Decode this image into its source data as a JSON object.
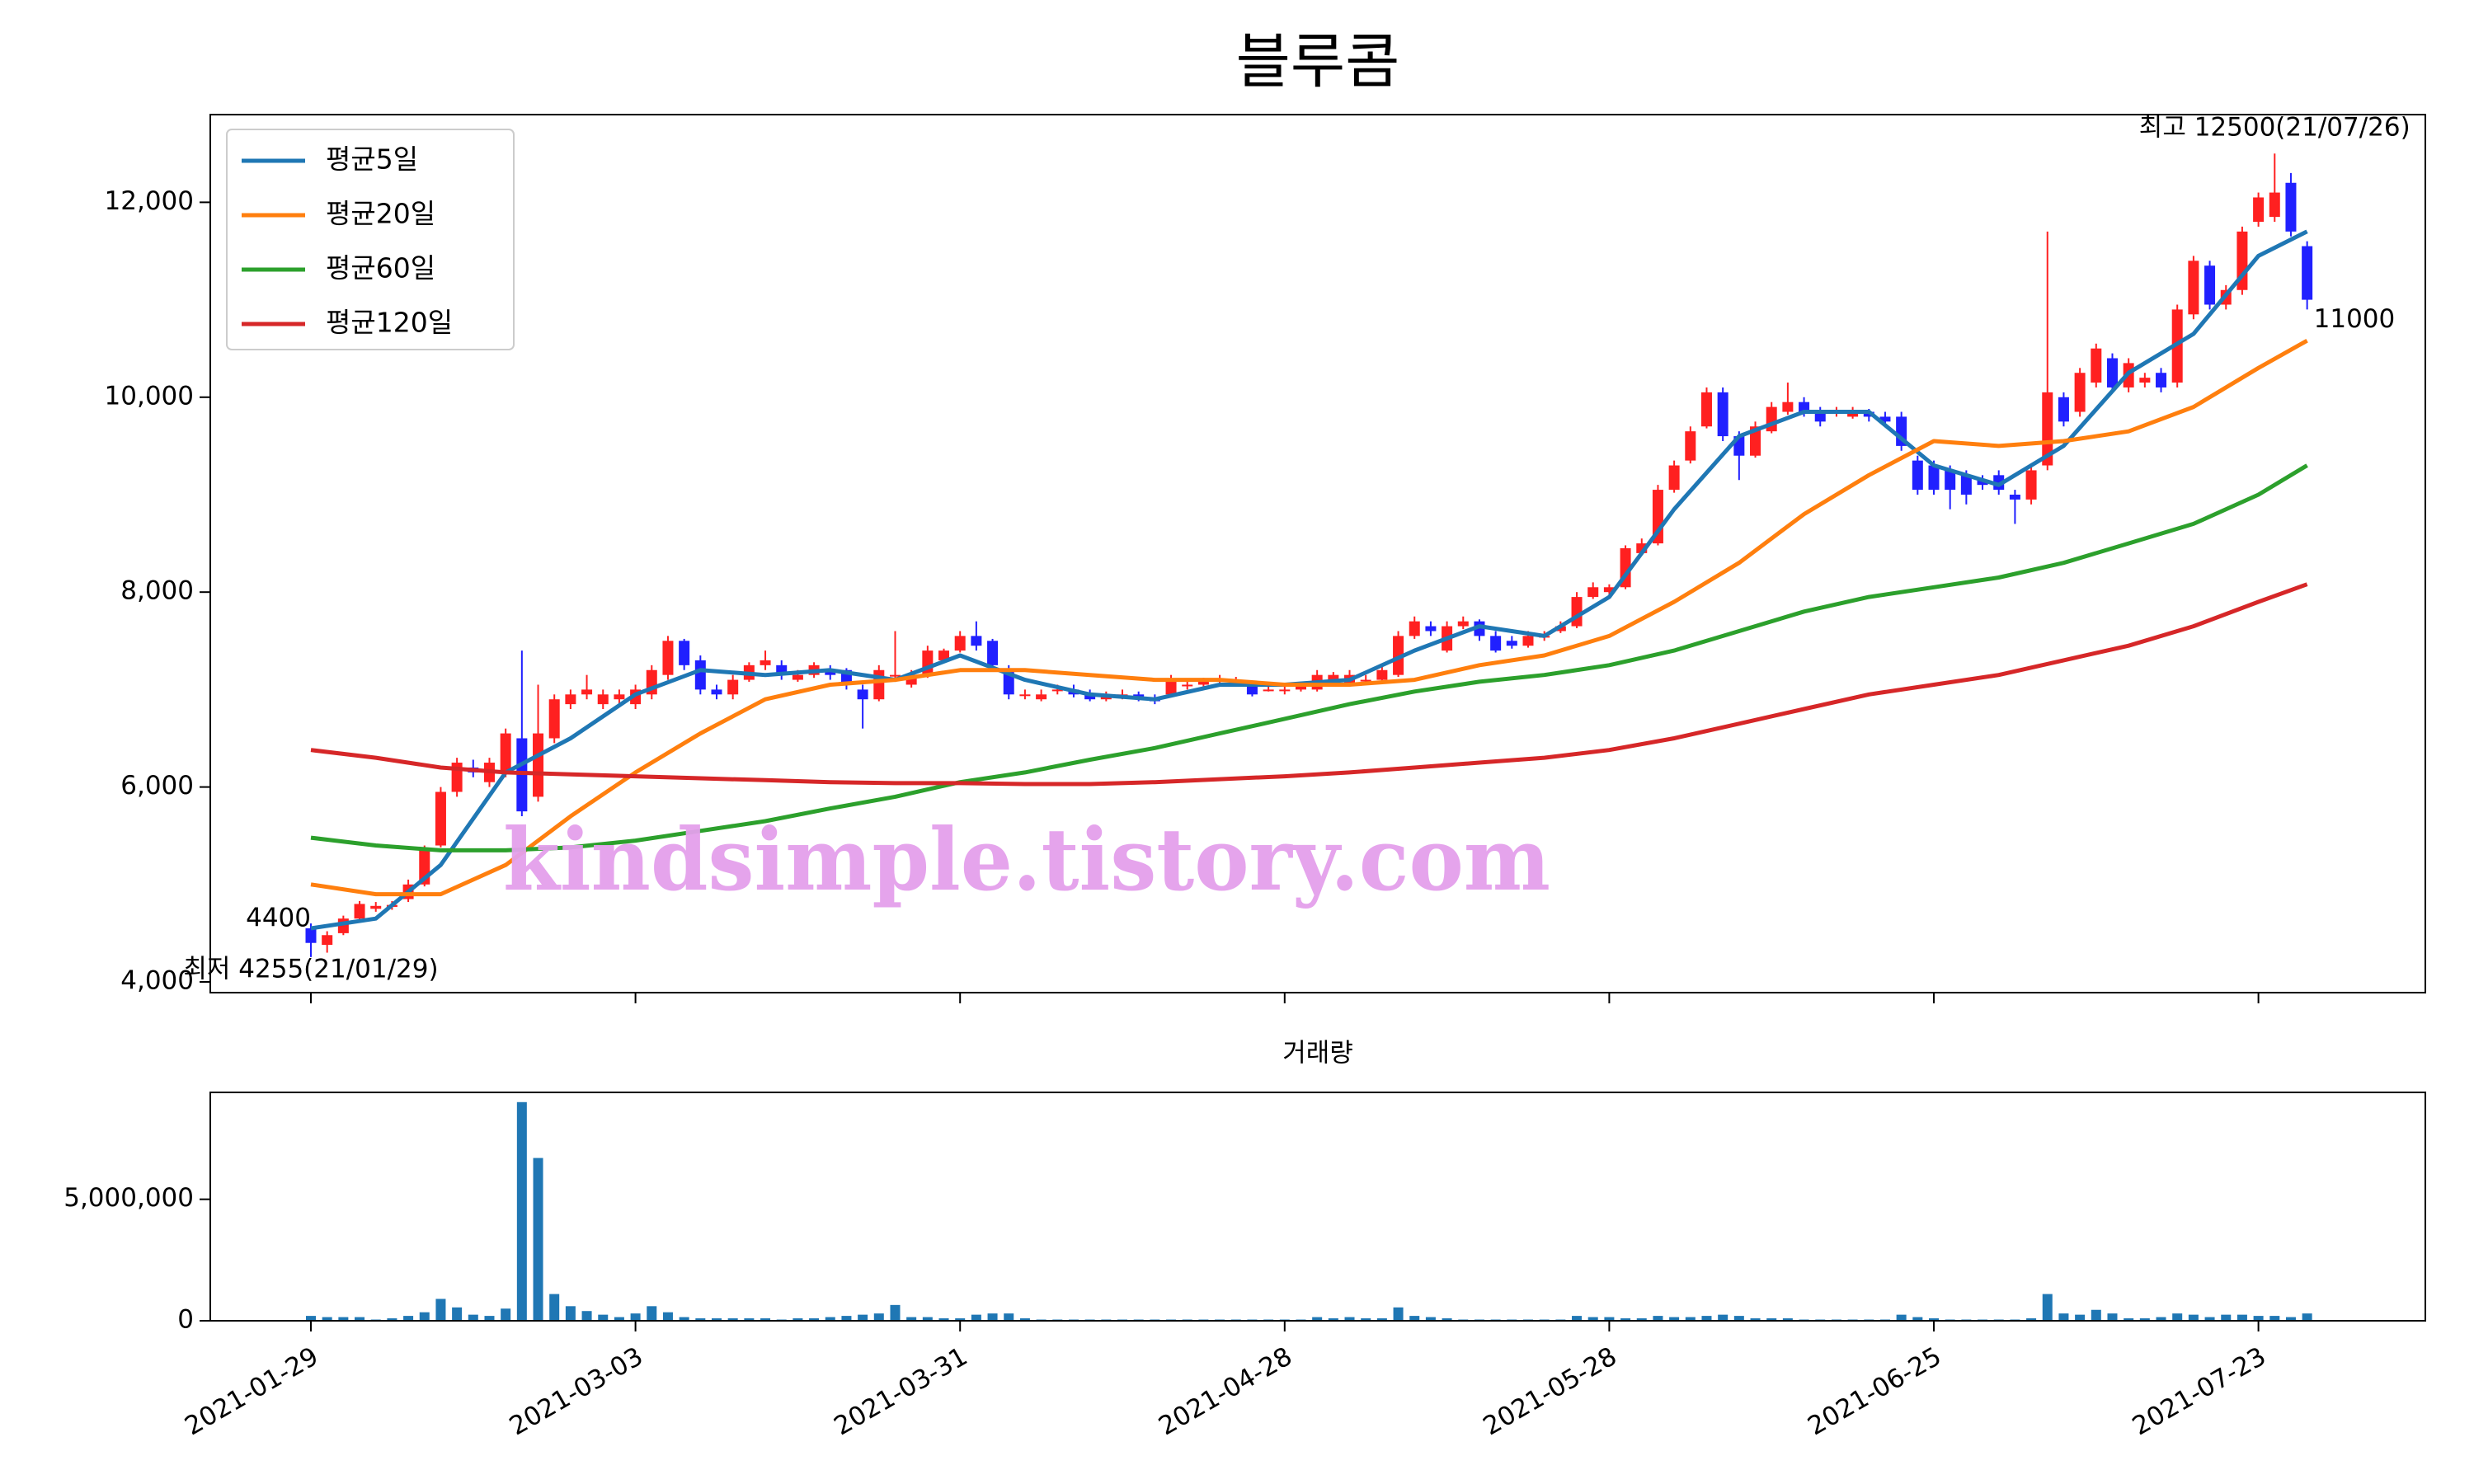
{
  "chart_data": [
    {
      "type": "candlestick",
      "title": "블루콤",
      "categories": [
        "2021-01-29",
        "2021-02-01",
        "2021-02-02",
        "2021-02-03",
        "2021-02-04",
        "2021-02-05",
        "2021-02-08",
        "2021-02-09",
        "2021-02-10",
        "2021-02-15",
        "2021-02-16",
        "2021-02-17",
        "2021-02-18",
        "2021-02-19",
        "2021-02-22",
        "2021-02-23",
        "2021-02-24",
        "2021-02-25",
        "2021-02-26",
        "2021-03-02",
        "2021-03-03",
        "2021-03-04",
        "2021-03-05",
        "2021-03-08",
        "2021-03-09",
        "2021-03-10",
        "2021-03-11",
        "2021-03-12",
        "2021-03-15",
        "2021-03-16",
        "2021-03-17",
        "2021-03-18",
        "2021-03-19",
        "2021-03-22",
        "2021-03-23",
        "2021-03-24",
        "2021-03-25",
        "2021-03-26",
        "2021-03-29",
        "2021-03-30",
        "2021-03-31",
        "2021-04-01",
        "2021-04-02",
        "2021-04-05",
        "2021-04-06",
        "2021-04-07",
        "2021-04-08",
        "2021-04-09",
        "2021-04-12",
        "2021-04-13",
        "2021-04-14",
        "2021-04-15",
        "2021-04-16",
        "2021-04-19",
        "2021-04-20",
        "2021-04-21",
        "2021-04-22",
        "2021-04-23",
        "2021-04-26",
        "2021-04-27",
        "2021-04-28",
        "2021-04-29",
        "2021-04-30",
        "2021-05-03",
        "2021-05-04",
        "2021-05-06",
        "2021-05-07",
        "2021-05-10",
        "2021-05-11",
        "2021-05-12",
        "2021-05-13",
        "2021-05-14",
        "2021-05-17",
        "2021-05-18",
        "2021-05-20",
        "2021-05-21",
        "2021-05-24",
        "2021-05-25",
        "2021-05-26",
        "2021-05-27",
        "2021-05-28",
        "2021-05-31",
        "2021-06-01",
        "2021-06-02",
        "2021-06-03",
        "2021-06-04",
        "2021-06-07",
        "2021-06-08",
        "2021-06-09",
        "2021-06-10",
        "2021-06-11",
        "2021-06-14",
        "2021-06-15",
        "2021-06-16",
        "2021-06-17",
        "2021-06-18",
        "2021-06-21",
        "2021-06-22",
        "2021-06-23",
        "2021-06-24",
        "2021-06-25",
        "2021-06-28",
        "2021-06-29",
        "2021-06-30",
        "2021-07-01",
        "2021-07-02",
        "2021-07-05",
        "2021-07-06",
        "2021-07-07",
        "2021-07-08",
        "2021-07-09",
        "2021-07-12",
        "2021-07-13",
        "2021-07-14",
        "2021-07-15",
        "2021-07-16",
        "2021-07-19",
        "2021-07-20",
        "2021-07-21",
        "2021-07-22",
        "2021-07-23",
        "2021-07-26",
        "2021-07-27",
        "2021-07-28"
      ],
      "open": [
        4550,
        4380,
        4500,
        4650,
        4750,
        4770,
        4850,
        5000,
        5400,
        5950,
        6200,
        6050,
        6150,
        6500,
        5900,
        6500,
        6850,
        6950,
        6850,
        6900,
        6850,
        6950,
        7150,
        7500,
        7300,
        7000,
        6950,
        7100,
        7250,
        7250,
        7100,
        7150,
        7200,
        7200,
        7000,
        6900,
        7150,
        7050,
        7150,
        7300,
        7400,
        7550,
        7500,
        7200,
        6950,
        6900,
        7000,
        7000,
        6950,
        6900,
        6950,
        6950,
        6900,
        6950,
        7050,
        7050,
        7100,
        7080,
        7050,
        7000,
        7000,
        7000,
        7000,
        7100,
        7050,
        7100,
        7100,
        7150,
        7550,
        7650,
        7400,
        7650,
        7700,
        7550,
        7500,
        7450,
        7550,
        7600,
        7650,
        7950,
        8000,
        8050,
        8400,
        8500,
        9050,
        9350,
        9700,
        10050,
        9600,
        9400,
        9650,
        9850,
        9950,
        9850,
        9850,
        9800,
        9850,
        9800,
        9800,
        9350,
        9300,
        9250,
        9200,
        9150,
        9200,
        9000,
        8950,
        9300,
        10000,
        9850,
        10150,
        10400,
        10100,
        10150,
        10250,
        10150,
        10850,
        11350,
        10950,
        11100,
        11800,
        11850,
        12200,
        11550
      ],
      "high": [
        4600,
        4520,
        4680,
        4830,
        4820,
        4830,
        5050,
        5400,
        6000,
        6300,
        6280,
        6300,
        6600,
        7400,
        7050,
        6950,
        7000,
        7150,
        7000,
        7000,
        7050,
        7250,
        7550,
        7520,
        7350,
        7050,
        7150,
        7280,
        7400,
        7300,
        7200,
        7280,
        7250,
        7220,
        7050,
        7250,
        7600,
        7200,
        7450,
        7420,
        7600,
        7700,
        7520,
        7250,
        7000,
        7000,
        7050,
        7050,
        7000,
        6980,
        7000,
        6980,
        6950,
        7150,
        7100,
        7120,
        7150,
        7130,
        7080,
        7050,
        7050,
        7080,
        7200,
        7180,
        7200,
        7150,
        7250,
        7600,
        7750,
        7700,
        7700,
        7750,
        7720,
        7600,
        7550,
        7600,
        7600,
        7700,
        8000,
        8100,
        8080,
        8480,
        8550,
        9100,
        9350,
        9700,
        10100,
        10100,
        9650,
        9750,
        9950,
        10150,
        10000,
        9900,
        9900,
        9900,
        9880,
        9850,
        9850,
        9400,
        9350,
        9300,
        9250,
        9200,
        9250,
        9050,
        9300,
        11700,
        10050,
        10300,
        10550,
        10450,
        10400,
        10250,
        10300,
        10950,
        11450,
        11400,
        11150,
        11750,
        12100,
        12500,
        12300,
        11600
      ],
      "low": [
        4255,
        4300,
        4480,
        4620,
        4720,
        4740,
        4820,
        4980,
        5380,
        5900,
        6100,
        6000,
        6100,
        5700,
        5850,
        6450,
        6800,
        6900,
        6800,
        6850,
        6800,
        6900,
        7100,
        7200,
        6950,
        6900,
        6900,
        7080,
        7200,
        7100,
        7080,
        7120,
        7100,
        7000,
        6600,
        6880,
        7100,
        7020,
        7120,
        7280,
        7380,
        7400,
        7200,
        6900,
        6900,
        6880,
        6950,
        6920,
        6880,
        6880,
        6900,
        6880,
        6850,
        6930,
        7000,
        7020,
        7050,
        7050,
        6930,
        6980,
        6950,
        6980,
        6980,
        7080,
        7030,
        7050,
        7080,
        7130,
        7520,
        7550,
        7380,
        7620,
        7500,
        7380,
        7420,
        7430,
        7500,
        7580,
        7630,
        7930,
        7980,
        8030,
        8380,
        8480,
        9020,
        9320,
        9680,
        9550,
        9150,
        9380,
        9630,
        9820,
        9800,
        9700,
        9800,
        9780,
        9750,
        9720,
        9450,
        9000,
        9000,
        8850,
        8900,
        9050,
        9000,
        8700,
        8900,
        9250,
        9700,
        9800,
        10100,
        10050,
        10050,
        10100,
        10050,
        10100,
        10800,
        10900,
        10900,
        11050,
        11750,
        11800,
        11650,
        10900
      ],
      "close": [
        4400,
        4480,
        4650,
        4800,
        4780,
        4790,
        5000,
        5350,
        5950,
        6250,
        6150,
        6250,
        6550,
        5750,
        6550,
        6900,
        6950,
        7000,
        6950,
        6950,
        7000,
        7200,
        7500,
        7250,
        7000,
        6950,
        7100,
        7250,
        7300,
        7150,
        7150,
        7250,
        7150,
        7050,
        6900,
        7200,
        7150,
        7150,
        7400,
        7400,
        7550,
        7450,
        7250,
        6950,
        6950,
        6950,
        7000,
        6950,
        6900,
        6950,
        6950,
        6900,
        6880,
        7100,
        7050,
        7100,
        7100,
        7100,
        6950,
        7000,
        7000,
        7050,
        7150,
        7150,
        7150,
        7100,
        7200,
        7550,
        7700,
        7600,
        7650,
        7700,
        7550,
        7400,
        7450,
        7550,
        7550,
        7650,
        7950,
        8050,
        8050,
        8450,
        8500,
        9050,
        9300,
        9650,
        10050,
        9600,
        9400,
        9700,
        9900,
        9950,
        9850,
        9750,
        9850,
        9850,
        9800,
        9750,
        9500,
        9050,
        9050,
        9050,
        9000,
        9100,
        9050,
        8950,
        9250,
        10050,
        9750,
        10250,
        10500,
        10100,
        10350,
        10200,
        10100,
        10900,
        11400,
        10950,
        11100,
        11700,
        12050,
        12100,
        11700,
        11000
      ],
      "up_color": "#ff2020",
      "down_color": "#2020ff",
      "series": [
        {
          "name": "평균5일",
          "color": "#1f77b4",
          "x": [
            "2021-01-29",
            "2021-02-04",
            "2021-02-10",
            "2021-02-18",
            "2021-02-24",
            "2021-03-03",
            "2021-03-09",
            "2021-03-15",
            "2021-03-19",
            "2021-03-25",
            "2021-03-31",
            "2021-04-06",
            "2021-04-12",
            "2021-04-16",
            "2021-04-22",
            "2021-04-28",
            "2021-05-04",
            "2021-05-11",
            "2021-05-17",
            "2021-05-24",
            "2021-05-28",
            "2021-06-03",
            "2021-06-09",
            "2021-06-15",
            "2021-06-21",
            "2021-06-25",
            "2021-07-01",
            "2021-07-07",
            "2021-07-13",
            "2021-07-19",
            "2021-07-23",
            "2021-07-28"
          ],
          "values": [
            4550,
            4650,
            5200,
            6150,
            6500,
            6950,
            7200,
            7150,
            7200,
            7100,
            7350,
            7100,
            6950,
            6900,
            7050,
            7050,
            7100,
            7400,
            7650,
            7550,
            7950,
            8850,
            9600,
            9850,
            9850,
            9300,
            9100,
            9500,
            10250,
            10650,
            11450,
            11700
          ]
        },
        {
          "name": "평균20일",
          "color": "#ff7f0e",
          "x": [
            "2021-01-29",
            "2021-02-04",
            "2021-02-10",
            "2021-02-18",
            "2021-02-24",
            "2021-03-03",
            "2021-03-09",
            "2021-03-15",
            "2021-03-19",
            "2021-03-25",
            "2021-03-31",
            "2021-04-06",
            "2021-04-12",
            "2021-04-16",
            "2021-04-22",
            "2021-04-28",
            "2021-05-04",
            "2021-05-11",
            "2021-05-17",
            "2021-05-24",
            "2021-05-28",
            "2021-06-03",
            "2021-06-09",
            "2021-06-15",
            "2021-06-21",
            "2021-06-25",
            "2021-07-01",
            "2021-07-07",
            "2021-07-13",
            "2021-07-19",
            "2021-07-23",
            "2021-07-28"
          ],
          "values": [
            5000,
            4900,
            4900,
            5200,
            5700,
            6150,
            6550,
            6900,
            7050,
            7100,
            7200,
            7200,
            7150,
            7100,
            7100,
            7050,
            7050,
            7100,
            7250,
            7350,
            7550,
            7900,
            8300,
            8800,
            9200,
            9550,
            9500,
            9550,
            9650,
            9900,
            10300,
            10580
          ]
        },
        {
          "name": "평균60일",
          "color": "#2ca02c",
          "x": [
            "2021-01-29",
            "2021-02-04",
            "2021-02-10",
            "2021-02-18",
            "2021-02-24",
            "2021-03-03",
            "2021-03-09",
            "2021-03-15",
            "2021-03-19",
            "2021-03-25",
            "2021-03-31",
            "2021-04-06",
            "2021-04-12",
            "2021-04-16",
            "2021-04-22",
            "2021-04-28",
            "2021-05-04",
            "2021-05-11",
            "2021-05-17",
            "2021-05-24",
            "2021-05-28",
            "2021-06-03",
            "2021-06-09",
            "2021-06-15",
            "2021-06-21",
            "2021-06-25",
            "2021-07-01",
            "2021-07-07",
            "2021-07-13",
            "2021-07-19",
            "2021-07-23",
            "2021-07-28"
          ],
          "values": [
            5480,
            5400,
            5350,
            5350,
            5380,
            5450,
            5550,
            5650,
            5780,
            5900,
            6050,
            6150,
            6280,
            6400,
            6550,
            6700,
            6850,
            6980,
            7080,
            7150,
            7250,
            7400,
            7600,
            7800,
            7950,
            8050,
            8150,
            8300,
            8500,
            8700,
            9000,
            9300
          ]
        },
        {
          "name": "평균120일",
          "color": "#d62728",
          "x": [
            "2021-01-29",
            "2021-02-04",
            "2021-02-10",
            "2021-02-18",
            "2021-02-24",
            "2021-03-03",
            "2021-03-09",
            "2021-03-15",
            "2021-03-19",
            "2021-03-25",
            "2021-03-31",
            "2021-04-06",
            "2021-04-12",
            "2021-04-16",
            "2021-04-22",
            "2021-04-28",
            "2021-05-04",
            "2021-05-11",
            "2021-05-17",
            "2021-05-24",
            "2021-05-28",
            "2021-06-03",
            "2021-06-09",
            "2021-06-15",
            "2021-06-21",
            "2021-06-25",
            "2021-07-01",
            "2021-07-07",
            "2021-07-13",
            "2021-07-19",
            "2021-07-23",
            "2021-07-28"
          ],
          "values": [
            6380,
            6300,
            6200,
            6150,
            6130,
            6110,
            6090,
            6070,
            6050,
            6040,
            6040,
            6030,
            6030,
            6050,
            6080,
            6110,
            6150,
            6200,
            6250,
            6300,
            6380,
            6500,
            6650,
            6800,
            6950,
            7050,
            7150,
            7300,
            7450,
            7650,
            7900,
            8080
          ]
        }
      ],
      "ylim": [
        3890,
        12900
      ],
      "yticks": [
        {
          "value": 4000,
          "label": "4,000"
        },
        {
          "value": 6000,
          "label": "6,000"
        },
        {
          "value": 8000,
          "label": "8,000"
        },
        {
          "value": 10000,
          "label": "10,000"
        },
        {
          "value": 12000,
          "label": "12,000"
        }
      ],
      "xticks": [
        "2021-01-29",
        "2021-03-03",
        "2021-03-31",
        "2021-04-28",
        "2021-05-28",
        "2021-06-25",
        "2021-07-23"
      ],
      "legend": "upper left",
      "annotations": [
        {
          "text": "최고 12500(21/07/26)",
          "x": "2021-07-26",
          "y": 12500,
          "color": "#ff0000"
        },
        {
          "text": "최저 4255(21/01/29)",
          "x": "2021-01-29",
          "y": 4255,
          "color": "#0000ff"
        },
        {
          "text": "4400",
          "x": "2021-01-29",
          "y": 4400,
          "color": "#000000"
        },
        {
          "text": "11000",
          "x": "2021-07-28",
          "y": 11000,
          "color": "#000000"
        }
      ],
      "watermark": "kindsimple.tistory.com"
    },
    {
      "type": "bar",
      "title": "거래량",
      "color": "#1f77b4",
      "values": [
        200000,
        150000,
        150000,
        150000,
        50000,
        100000,
        200000,
        350000,
        900000,
        550000,
        250000,
        200000,
        500000,
        9000000,
        6700000,
        1100000,
        600000,
        400000,
        250000,
        150000,
        300000,
        600000,
        350000,
        150000,
        100000,
        100000,
        100000,
        100000,
        100000,
        50000,
        100000,
        100000,
        150000,
        200000,
        250000,
        300000,
        650000,
        150000,
        150000,
        100000,
        100000,
        250000,
        300000,
        300000,
        100000,
        50000,
        50000,
        50000,
        50000,
        50000,
        50000,
        50000,
        50000,
        50000,
        50000,
        50000,
        50000,
        50000,
        50000,
        50000,
        50000,
        50000,
        150000,
        100000,
        150000,
        100000,
        100000,
        550000,
        200000,
        150000,
        100000,
        50000,
        50000,
        50000,
        50000,
        50000,
        50000,
        50000,
        200000,
        150000,
        150000,
        100000,
        100000,
        200000,
        150000,
        150000,
        200000,
        250000,
        200000,
        100000,
        100000,
        100000,
        50000,
        50000,
        50000,
        50000,
        50000,
        50000,
        250000,
        150000,
        100000,
        50000,
        50000,
        50000,
        50000,
        50000,
        100000,
        1100000,
        300000,
        250000,
        450000,
        300000,
        100000,
        100000,
        150000,
        300000,
        250000,
        150000,
        250000,
        250000,
        200000,
        200000,
        150000,
        300000
      ],
      "ylim": [
        0,
        9400000
      ],
      "yticks": [
        0,
        {
          "value": 5000000,
          "label": "5,000,000"
        }
      ],
      "xticks": [
        "2021-01-29",
        "2021-03-03",
        "2021-03-31",
        "2021-04-28",
        "2021-05-28",
        "2021-06-25",
        "2021-07-23"
      ]
    }
  ]
}
